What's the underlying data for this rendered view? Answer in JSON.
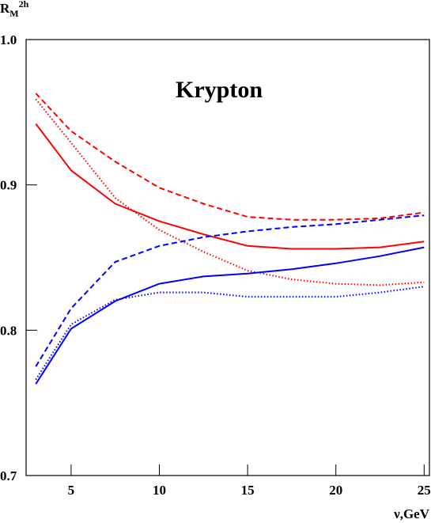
{
  "chart_data": {
    "type": "line",
    "annotation": "Krypton",
    "ylabel": {
      "main": "R",
      "sub": "M",
      "sup": "2h"
    },
    "xlabel": "ν,GeV",
    "x": [
      3,
      5,
      7.5,
      10,
      12.5,
      15,
      17.5,
      20,
      22.5,
      25
    ],
    "xlim": [
      2.45,
      25.3
    ],
    "xticks": [
      5,
      10,
      15,
      20,
      25
    ],
    "ylim": [
      0.7,
      1.0
    ],
    "yticks": [
      0.7,
      0.8,
      0.9,
      {
        "value": 1.0,
        "label": "1.0"
      }
    ],
    "series": [
      {
        "color": "#ff0000",
        "style": "solid",
        "values": [
          0.942,
          0.91,
          0.887,
          0.875,
          0.866,
          0.858,
          0.856,
          0.856,
          0.857,
          0.861
        ]
      },
      {
        "color": "#ff0000",
        "style": "dashed",
        "values": [
          0.963,
          0.937,
          0.916,
          0.898,
          0.887,
          0.878,
          0.876,
          0.876,
          0.877,
          0.881
        ]
      },
      {
        "color": "#ff0000",
        "style": "dotted",
        "values": [
          0.959,
          0.929,
          0.891,
          0.869,
          0.854,
          0.841,
          0.835,
          0.832,
          0.831,
          0.833
        ]
      },
      {
        "color": "#0000ff",
        "style": "solid",
        "values": [
          0.763,
          0.801,
          0.82,
          0.832,
          0.837,
          0.839,
          0.842,
          0.846,
          0.851,
          0.857
        ]
      },
      {
        "color": "#0000ff",
        "style": "dashed",
        "values": [
          0.775,
          0.815,
          0.847,
          0.858,
          0.864,
          0.868,
          0.871,
          0.873,
          0.876,
          0.879
        ]
      },
      {
        "color": "#0000ff",
        "style": "dotted",
        "values": [
          0.766,
          0.804,
          0.821,
          0.826,
          0.826,
          0.823,
          0.823,
          0.823,
          0.826,
          0.83
        ]
      }
    ]
  }
}
